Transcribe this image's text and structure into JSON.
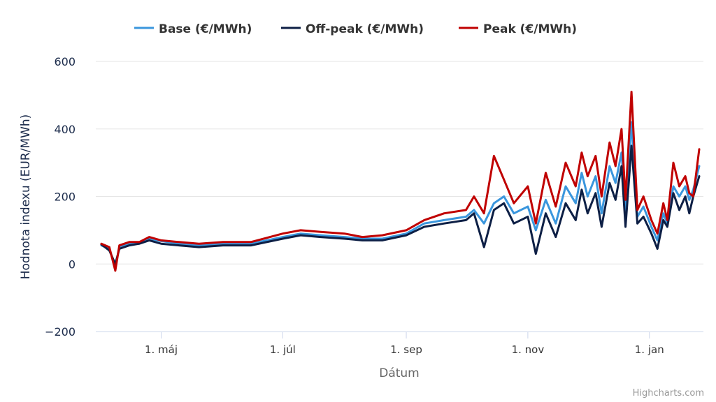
{
  "chart_data": {
    "type": "line",
    "title": "",
    "xlabel": "Dátum",
    "ylabel": "Hodnota indexu (EUR/MWh)",
    "ylim": [
      -200,
      600
    ],
    "yticks": [
      -200,
      0,
      200,
      400,
      600
    ],
    "x_start": "2023-04-01",
    "x_end": "2024-01-26",
    "xticks": [
      {
        "label": "1. máj",
        "date": "2023-05-01"
      },
      {
        "label": "1. júl",
        "date": "2023-07-01"
      },
      {
        "label": "1. sep",
        "date": "2023-09-01"
      },
      {
        "label": "1. nov",
        "date": "2023-11-01"
      },
      {
        "label": "1. jan",
        "date": "2024-01-01"
      }
    ],
    "grid": true,
    "legend_position": "top-center",
    "series": [
      {
        "name": "Base (€/MWh)",
        "color": "#3a96dd",
        "points": [
          [
            "2023-04-01",
            55
          ],
          [
            "2023-04-05",
            45
          ],
          [
            "2023-04-08",
            -10
          ],
          [
            "2023-04-10",
            50
          ],
          [
            "2023-04-15",
            60
          ],
          [
            "2023-04-20",
            60
          ],
          [
            "2023-04-25",
            75
          ],
          [
            "2023-05-01",
            68
          ],
          [
            "2023-05-10",
            60
          ],
          [
            "2023-05-20",
            55
          ],
          [
            "2023-06-01",
            60
          ],
          [
            "2023-06-15",
            60
          ],
          [
            "2023-07-01",
            80
          ],
          [
            "2023-07-10",
            90
          ],
          [
            "2023-07-20",
            85
          ],
          [
            "2023-08-01",
            80
          ],
          [
            "2023-08-10",
            75
          ],
          [
            "2023-08-20",
            75
          ],
          [
            "2023-09-01",
            90
          ],
          [
            "2023-09-10",
            120
          ],
          [
            "2023-09-20",
            130
          ],
          [
            "2023-10-01",
            140
          ],
          [
            "2023-10-05",
            160
          ],
          [
            "2023-10-10",
            120
          ],
          [
            "2023-10-15",
            180
          ],
          [
            "2023-10-20",
            200
          ],
          [
            "2023-10-25",
            150
          ],
          [
            "2023-11-01",
            170
          ],
          [
            "2023-11-05",
            100
          ],
          [
            "2023-11-10",
            190
          ],
          [
            "2023-11-15",
            120
          ],
          [
            "2023-11-20",
            230
          ],
          [
            "2023-11-25",
            180
          ],
          [
            "2023-11-28",
            270
          ],
          [
            "2023-12-01",
            200
          ],
          [
            "2023-12-05",
            260
          ],
          [
            "2023-12-08",
            150
          ],
          [
            "2023-12-12",
            290
          ],
          [
            "2023-12-15",
            240
          ],
          [
            "2023-12-18",
            330
          ],
          [
            "2023-12-20",
            160
          ],
          [
            "2023-12-23",
            420
          ],
          [
            "2023-12-26",
            140
          ],
          [
            "2023-12-29",
            170
          ],
          [
            "2024-01-02",
            110
          ],
          [
            "2024-01-05",
            70
          ],
          [
            "2024-01-08",
            150
          ],
          [
            "2024-01-10",
            120
          ],
          [
            "2024-01-13",
            230
          ],
          [
            "2024-01-16",
            200
          ],
          [
            "2024-01-19",
            230
          ],
          [
            "2024-01-21",
            190
          ],
          [
            "2024-01-23",
            220
          ],
          [
            "2024-01-26",
            290
          ]
        ]
      },
      {
        "name": "Off-peak (€/MWh)",
        "color": "#0d1f45",
        "points": [
          [
            "2023-04-01",
            58
          ],
          [
            "2023-04-05",
            40
          ],
          [
            "2023-04-08",
            0
          ],
          [
            "2023-04-10",
            45
          ],
          [
            "2023-04-15",
            55
          ],
          [
            "2023-04-20",
            60
          ],
          [
            "2023-04-25",
            70
          ],
          [
            "2023-05-01",
            60
          ],
          [
            "2023-05-10",
            55
          ],
          [
            "2023-05-20",
            50
          ],
          [
            "2023-06-01",
            55
          ],
          [
            "2023-06-15",
            55
          ],
          [
            "2023-07-01",
            75
          ],
          [
            "2023-07-10",
            85
          ],
          [
            "2023-07-20",
            80
          ],
          [
            "2023-08-01",
            75
          ],
          [
            "2023-08-10",
            70
          ],
          [
            "2023-08-20",
            70
          ],
          [
            "2023-09-01",
            85
          ],
          [
            "2023-09-10",
            110
          ],
          [
            "2023-09-20",
            120
          ],
          [
            "2023-10-01",
            130
          ],
          [
            "2023-10-05",
            150
          ],
          [
            "2023-10-10",
            50
          ],
          [
            "2023-10-15",
            160
          ],
          [
            "2023-10-20",
            180
          ],
          [
            "2023-10-25",
            120
          ],
          [
            "2023-11-01",
            140
          ],
          [
            "2023-11-05",
            30
          ],
          [
            "2023-11-10",
            150
          ],
          [
            "2023-11-15",
            80
          ],
          [
            "2023-11-20",
            180
          ],
          [
            "2023-11-25",
            130
          ],
          [
            "2023-11-28",
            220
          ],
          [
            "2023-12-01",
            150
          ],
          [
            "2023-12-05",
            210
          ],
          [
            "2023-12-08",
            110
          ],
          [
            "2023-12-12",
            240
          ],
          [
            "2023-12-15",
            190
          ],
          [
            "2023-12-18",
            290
          ],
          [
            "2023-12-20",
            110
          ],
          [
            "2023-12-23",
            350
          ],
          [
            "2023-12-26",
            120
          ],
          [
            "2023-12-29",
            140
          ],
          [
            "2024-01-02",
            90
          ],
          [
            "2024-01-05",
            45
          ],
          [
            "2024-01-08",
            130
          ],
          [
            "2024-01-10",
            110
          ],
          [
            "2024-01-13",
            210
          ],
          [
            "2024-01-16",
            160
          ],
          [
            "2024-01-19",
            200
          ],
          [
            "2024-01-21",
            150
          ],
          [
            "2024-01-23",
            200
          ],
          [
            "2024-01-26",
            260
          ]
        ]
      },
      {
        "name": "Peak (€/MWh)",
        "color": "#c00000",
        "points": [
          [
            "2023-04-01",
            60
          ],
          [
            "2023-04-05",
            50
          ],
          [
            "2023-04-08",
            -20
          ],
          [
            "2023-04-10",
            55
          ],
          [
            "2023-04-15",
            65
          ],
          [
            "2023-04-20",
            65
          ],
          [
            "2023-04-25",
            80
          ],
          [
            "2023-05-01",
            70
          ],
          [
            "2023-05-10",
            65
          ],
          [
            "2023-05-20",
            60
          ],
          [
            "2023-06-01",
            65
          ],
          [
            "2023-06-15",
            65
          ],
          [
            "2023-07-01",
            90
          ],
          [
            "2023-07-10",
            100
          ],
          [
            "2023-07-20",
            95
          ],
          [
            "2023-08-01",
            90
          ],
          [
            "2023-08-10",
            80
          ],
          [
            "2023-08-20",
            85
          ],
          [
            "2023-09-01",
            100
          ],
          [
            "2023-09-10",
            130
          ],
          [
            "2023-09-20",
            150
          ],
          [
            "2023-10-01",
            160
          ],
          [
            "2023-10-05",
            200
          ],
          [
            "2023-10-10",
            150
          ],
          [
            "2023-10-15",
            320
          ],
          [
            "2023-10-20",
            250
          ],
          [
            "2023-10-25",
            180
          ],
          [
            "2023-11-01",
            230
          ],
          [
            "2023-11-05",
            120
          ],
          [
            "2023-11-10",
            270
          ],
          [
            "2023-11-15",
            170
          ],
          [
            "2023-11-20",
            300
          ],
          [
            "2023-11-25",
            230
          ],
          [
            "2023-11-28",
            330
          ],
          [
            "2023-12-01",
            260
          ],
          [
            "2023-12-05",
            320
          ],
          [
            "2023-12-08",
            200
          ],
          [
            "2023-12-12",
            360
          ],
          [
            "2023-12-15",
            290
          ],
          [
            "2023-12-18",
            400
          ],
          [
            "2023-12-20",
            190
          ],
          [
            "2023-12-23",
            510
          ],
          [
            "2023-12-26",
            160
          ],
          [
            "2023-12-29",
            200
          ],
          [
            "2024-01-02",
            130
          ],
          [
            "2024-01-05",
            90
          ],
          [
            "2024-01-08",
            180
          ],
          [
            "2024-01-10",
            130
          ],
          [
            "2024-01-13",
            300
          ],
          [
            "2024-01-16",
            230
          ],
          [
            "2024-01-19",
            260
          ],
          [
            "2024-01-21",
            210
          ],
          [
            "2024-01-23",
            200
          ],
          [
            "2024-01-26",
            340
          ]
        ]
      }
    ]
  },
  "credits": "Highcharts.com"
}
